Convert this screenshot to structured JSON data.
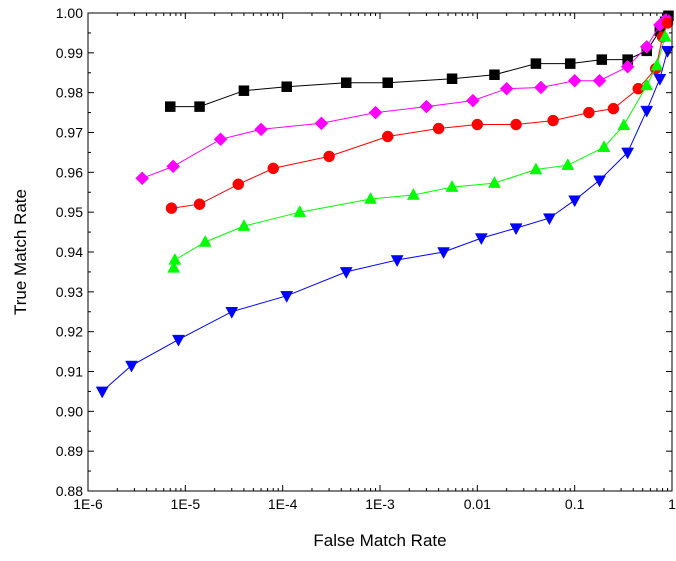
{
  "chart_data": {
    "type": "line",
    "xlabel": "False Match Rate",
    "ylabel": "True Match Rate",
    "xscale": "log",
    "xlim": [
      1e-06,
      1
    ],
    "ylim": [
      0.88,
      1.0
    ],
    "x_tick_labels": [
      "1E-6",
      "1E-5",
      "1E-4",
      "1E-3",
      "0.01",
      "0.1",
      "1"
    ],
    "y_ticks": [
      0.88,
      0.89,
      0.9,
      0.91,
      0.92,
      0.93,
      0.94,
      0.95,
      0.96,
      0.97,
      0.98,
      0.99,
      1.0
    ],
    "y_tick_labels": [
      "0.88",
      "0.89",
      "0.90",
      "0.91",
      "0.92",
      "0.93",
      "0.94",
      "0.95",
      "0.96",
      "0.97",
      "0.98",
      "0.99",
      "1.00"
    ],
    "grid": false,
    "legend": "none",
    "series": [
      {
        "color": "#000000",
        "marker": "square",
        "points": [
          [
            7e-06,
            0.9765
          ],
          [
            1.4e-05,
            0.9765
          ],
          [
            4e-05,
            0.9805
          ],
          [
            0.00011,
            0.9815
          ],
          [
            0.00045,
            0.9825
          ],
          [
            0.0012,
            0.9825
          ],
          [
            0.0055,
            0.9835
          ],
          [
            0.015,
            0.9845
          ],
          [
            0.04,
            0.9873
          ],
          [
            0.09,
            0.9873
          ],
          [
            0.19,
            0.9883
          ],
          [
            0.35,
            0.9883
          ],
          [
            0.55,
            0.9905
          ],
          [
            0.75,
            0.9955
          ],
          [
            0.85,
            0.9978
          ],
          [
            0.92,
            0.9993
          ]
        ]
      },
      {
        "color": "#ff00ff",
        "marker": "diamond",
        "points": [
          [
            3.6e-06,
            0.9585
          ],
          [
            7.5e-06,
            0.9615
          ],
          [
            2.3e-05,
            0.9683
          ],
          [
            6e-05,
            0.9708
          ],
          [
            0.00025,
            0.9723
          ],
          [
            0.0009,
            0.975
          ],
          [
            0.003,
            0.9765
          ],
          [
            0.009,
            0.978
          ],
          [
            0.02,
            0.981
          ],
          [
            0.045,
            0.9813
          ],
          [
            0.1,
            0.983
          ],
          [
            0.18,
            0.983
          ],
          [
            0.35,
            0.9865
          ],
          [
            0.55,
            0.9915
          ],
          [
            0.75,
            0.997
          ],
          [
            0.88,
            0.9985
          ]
        ]
      },
      {
        "color": "#ff0000",
        "marker": "circle",
        "points": [
          [
            7.2e-06,
            0.951
          ],
          [
            1.4e-05,
            0.952
          ],
          [
            3.5e-05,
            0.957
          ],
          [
            8e-05,
            0.961
          ],
          [
            0.0003,
            0.964
          ],
          [
            0.0012,
            0.969
          ],
          [
            0.004,
            0.971
          ],
          [
            0.01,
            0.972
          ],
          [
            0.025,
            0.972
          ],
          [
            0.06,
            0.973
          ],
          [
            0.14,
            0.975
          ],
          [
            0.25,
            0.976
          ],
          [
            0.45,
            0.981
          ],
          [
            0.68,
            0.986
          ],
          [
            0.8,
            0.994
          ],
          [
            0.9,
            0.9975
          ]
        ]
      },
      {
        "color": "#00ff00",
        "marker": "triangle-up",
        "points": [
          [
            7.6e-06,
            0.936
          ],
          [
            7.8e-06,
            0.938
          ],
          [
            1.6e-05,
            0.9425
          ],
          [
            4e-05,
            0.9465
          ],
          [
            0.00015,
            0.95
          ],
          [
            0.0008,
            0.9533
          ],
          [
            0.0022,
            0.9543
          ],
          [
            0.0055,
            0.9563
          ],
          [
            0.015,
            0.9573
          ],
          [
            0.04,
            0.9607
          ],
          [
            0.085,
            0.9618
          ],
          [
            0.2,
            0.9663
          ],
          [
            0.32,
            0.9718
          ],
          [
            0.55,
            0.9818
          ],
          [
            0.7,
            0.9868
          ],
          [
            0.85,
            0.994
          ]
        ]
      },
      {
        "color": "#0000ff",
        "marker": "triangle-down",
        "points": [
          [
            1.4e-06,
            0.905
          ],
          [
            2.8e-06,
            0.9115
          ],
          [
            8.5e-06,
            0.918
          ],
          [
            3e-05,
            0.925
          ],
          [
            0.00011,
            0.929
          ],
          [
            0.00045,
            0.935
          ],
          [
            0.0015,
            0.938
          ],
          [
            0.0045,
            0.94
          ],
          [
            0.011,
            0.9435
          ],
          [
            0.025,
            0.946
          ],
          [
            0.055,
            0.9485
          ],
          [
            0.1,
            0.953
          ],
          [
            0.18,
            0.958
          ],
          [
            0.35,
            0.965
          ],
          [
            0.55,
            0.9755
          ],
          [
            0.75,
            0.9835
          ],
          [
            0.9,
            0.9905
          ]
        ]
      }
    ]
  }
}
